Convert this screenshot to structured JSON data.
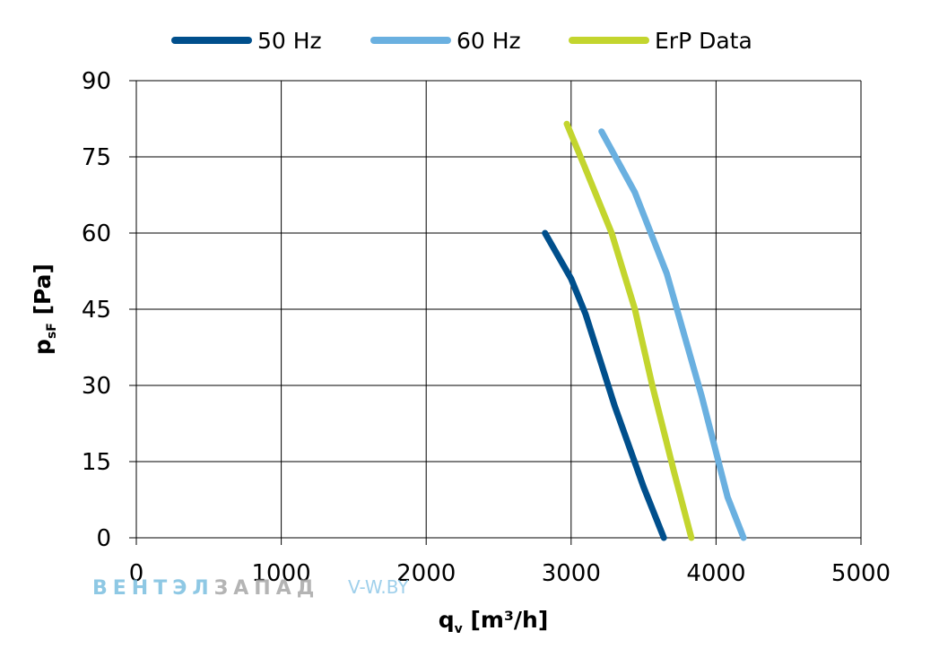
{
  "chart_data": {
    "type": "line",
    "xlabel": {
      "main": "q",
      "sub": "v",
      "rest": " [m³/h]"
    },
    "ylabel": {
      "main": "p",
      "sub": "sF",
      "rest": " [Pa]"
    },
    "xlim": [
      0,
      5000
    ],
    "ylim": [
      0,
      90
    ],
    "x_ticks": [
      0,
      1000,
      2000,
      3000,
      4000,
      5000
    ],
    "y_ticks": [
      0,
      15,
      30,
      45,
      60,
      75,
      90
    ],
    "x_tick_labels": [
      "0",
      "1000",
      "2000",
      "3000",
      "4000",
      "5000"
    ],
    "y_tick_labels": [
      "0",
      "15",
      "30",
      "45",
      "60",
      "75",
      "90"
    ],
    "grid": true,
    "legend_position": "top",
    "series": [
      {
        "name": "50 Hz",
        "color": "#004f8c",
        "points": [
          [
            2820,
            60
          ],
          [
            3000,
            51
          ],
          [
            3100,
            44
          ],
          [
            3300,
            26
          ],
          [
            3500,
            10
          ],
          [
            3640,
            0
          ]
        ]
      },
      {
        "name": "60 Hz",
        "color": "#6ab0e0",
        "points": [
          [
            3210,
            80
          ],
          [
            3440,
            68
          ],
          [
            3660,
            52
          ],
          [
            3900,
            28
          ],
          [
            4080,
            8
          ],
          [
            4190,
            0
          ]
        ]
      },
      {
        "name": "ErP Data",
        "color": "#c3d52e",
        "points": [
          [
            2970,
            81.5
          ],
          [
            3080,
            74
          ],
          [
            3280,
            60
          ],
          [
            3440,
            45
          ],
          [
            3560,
            30
          ],
          [
            3710,
            13
          ],
          [
            3830,
            0
          ]
        ]
      }
    ]
  },
  "watermark": {
    "brand_part1": "ВЕНТЭЛ",
    "brand_part2": "ЗАПАД",
    "site": "V-W.BY",
    "brand_color_1": "#7bbfe0",
    "brand_color_2": "#a8a8a8",
    "site_color": "#8fc8e8"
  }
}
